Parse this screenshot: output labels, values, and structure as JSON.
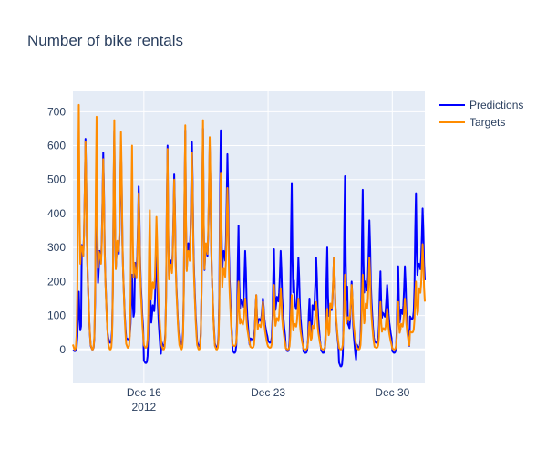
{
  "chart_data": {
    "type": "line",
    "title": "Number of bike rentals",
    "xlabel": "",
    "ylabel": "",
    "x_range": [
      "2012-12-12",
      "2012-12-31T20:00"
    ],
    "ylim": [
      -100,
      760
    ],
    "grid": true,
    "legend_position": "top-right",
    "x_ticks": [
      {
        "date": "2012-12-16",
        "label": "Dec 16",
        "sublabel": "2012"
      },
      {
        "date": "2012-12-23",
        "label": "Dec 23",
        "sublabel": ""
      },
      {
        "date": "2012-12-30",
        "label": "Dec 30",
        "sublabel": ""
      }
    ],
    "y_ticks": [
      0,
      100,
      200,
      300,
      400,
      500,
      600,
      700
    ],
    "series": [
      {
        "name": "Predictions",
        "color": "#0000ff",
        "daily_peaks": [
          {
            "date": "2012-12-12",
            "am": 170,
            "pm": 620,
            "min": -5
          },
          {
            "date": "2012-12-13",
            "am": 560,
            "pm": 580,
            "min": 0
          },
          {
            "date": "2012-12-14",
            "am": 645,
            "pm": 600,
            "min": 20
          },
          {
            "date": "2012-12-15",
            "am": 220,
            "pm": 480,
            "min": 30
          },
          {
            "date": "2012-12-16",
            "am": 300,
            "pm": 300,
            "min": -40
          },
          {
            "date": "2012-12-17",
            "am": 600,
            "pm": 515,
            "min": 10
          },
          {
            "date": "2012-12-18",
            "am": 645,
            "pm": 610,
            "min": 15
          },
          {
            "date": "2012-12-19",
            "am": 650,
            "pm": 600,
            "min": 10
          },
          {
            "date": "2012-12-20",
            "am": 645,
            "pm": 575,
            "min": 5
          },
          {
            "date": "2012-12-21",
            "am": 365,
            "pm": 290,
            "min": -10
          },
          {
            "date": "2012-12-22",
            "am": 160,
            "pm": 150,
            "min": 30
          },
          {
            "date": "2012-12-23",
            "am": 295,
            "pm": 290,
            "min": 20
          },
          {
            "date": "2012-12-24",
            "am": 490,
            "pm": 270,
            "min": -5
          },
          {
            "date": "2012-12-25",
            "am": 150,
            "pm": 270,
            "min": -10
          },
          {
            "date": "2012-12-26",
            "am": 300,
            "pm": 270,
            "min": -10
          },
          {
            "date": "2012-12-27",
            "am": 510,
            "pm": 200,
            "min": -50
          },
          {
            "date": "2012-12-28",
            "am": 470,
            "pm": 380,
            "min": 5
          },
          {
            "date": "2012-12-29",
            "am": 230,
            "pm": 190,
            "min": 20
          },
          {
            "date": "2012-12-30",
            "am": 245,
            "pm": 245,
            "min": -10
          },
          {
            "date": "2012-12-31",
            "am": 460,
            "pm": 415,
            "min": 90
          }
        ]
      },
      {
        "name": "Targets",
        "color": "#ff8c00",
        "daily_peaks": [
          {
            "date": "2012-12-12",
            "am": 720,
            "pm": 610,
            "min": 0
          },
          {
            "date": "2012-12-13",
            "am": 685,
            "pm": 560,
            "min": 0
          },
          {
            "date": "2012-12-14",
            "am": 675,
            "pm": 640,
            "min": 0
          },
          {
            "date": "2012-12-15",
            "am": 600,
            "pm": 460,
            "min": 5
          },
          {
            "date": "2012-12-16",
            "am": 410,
            "pm": 390,
            "min": 5
          },
          {
            "date": "2012-12-17",
            "am": 590,
            "pm": 500,
            "min": 0
          },
          {
            "date": "2012-12-18",
            "am": 660,
            "pm": 580,
            "min": 0
          },
          {
            "date": "2012-12-19",
            "am": 675,
            "pm": 625,
            "min": 0
          },
          {
            "date": "2012-12-20",
            "am": 520,
            "pm": 475,
            "min": 0
          },
          {
            "date": "2012-12-21",
            "am": 200,
            "pm": 150,
            "min": 10
          },
          {
            "date": "2012-12-22",
            "am": 160,
            "pm": 140,
            "min": 5
          },
          {
            "date": "2012-12-23",
            "am": 190,
            "pm": 180,
            "min": 5
          },
          {
            "date": "2012-12-24",
            "am": 160,
            "pm": 150,
            "min": 0
          },
          {
            "date": "2012-12-25",
            "am": 80,
            "pm": 140,
            "min": 0
          },
          {
            "date": "2012-12-26",
            "am": 120,
            "pm": 270,
            "min": 0
          },
          {
            "date": "2012-12-27",
            "am": 220,
            "pm": 190,
            "min": 0
          },
          {
            "date": "2012-12-28",
            "am": 220,
            "pm": 270,
            "min": 0
          },
          {
            "date": "2012-12-29",
            "am": 140,
            "pm": 120,
            "min": 5
          },
          {
            "date": "2012-12-30",
            "am": 140,
            "pm": 150,
            "min": 0
          },
          {
            "date": "2012-12-31",
            "am": 200,
            "pm": 310,
            "min": 50
          }
        ]
      }
    ]
  }
}
